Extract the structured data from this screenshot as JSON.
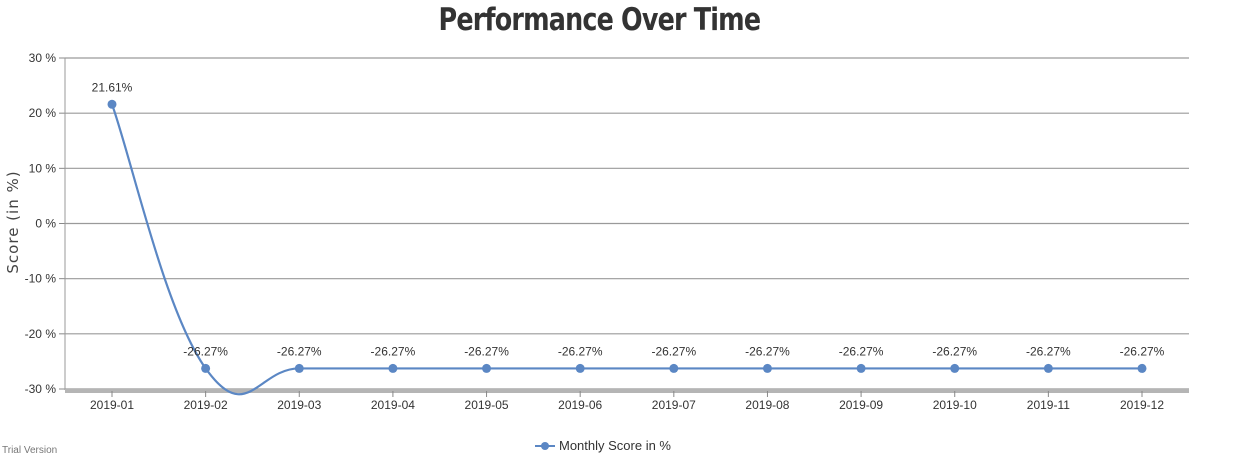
{
  "chart_data": {
    "type": "line",
    "title": "Performance Over Time",
    "ylabel": "Score (in %)",
    "xlabel": "",
    "categories": [
      "2019-01",
      "2019-02",
      "2019-03",
      "2019-04",
      "2019-05",
      "2019-06",
      "2019-07",
      "2019-08",
      "2019-09",
      "2019-10",
      "2019-11",
      "2019-12"
    ],
    "series": [
      {
        "name": "Monthly Score in %",
        "values": [
          21.61,
          -26.27,
          -26.27,
          -26.27,
          -26.27,
          -26.27,
          -26.27,
          -26.27,
          -26.27,
          -26.27,
          -26.27,
          -26.27
        ],
        "labels": [
          "21.61%",
          "-26.27%",
          "-26.27%",
          "-26.27%",
          "-26.27%",
          "-26.27%",
          "-26.27%",
          "-26.27%",
          "-26.27%",
          "-26.27%",
          "-26.27%",
          "-26.27%"
        ],
        "color": "#5b87c4"
      }
    ],
    "ylim": [
      -30,
      30
    ],
    "yticks": [
      30,
      20,
      10,
      0,
      -10,
      -20,
      -30
    ],
    "ytick_labels": [
      "30 %",
      "20 %",
      "10 %",
      "0 %",
      "-10 %",
      "-20 %",
      "-30 %"
    ],
    "grid": true,
    "legend_position": "bottom-center"
  },
  "watermark": "Trial Version"
}
